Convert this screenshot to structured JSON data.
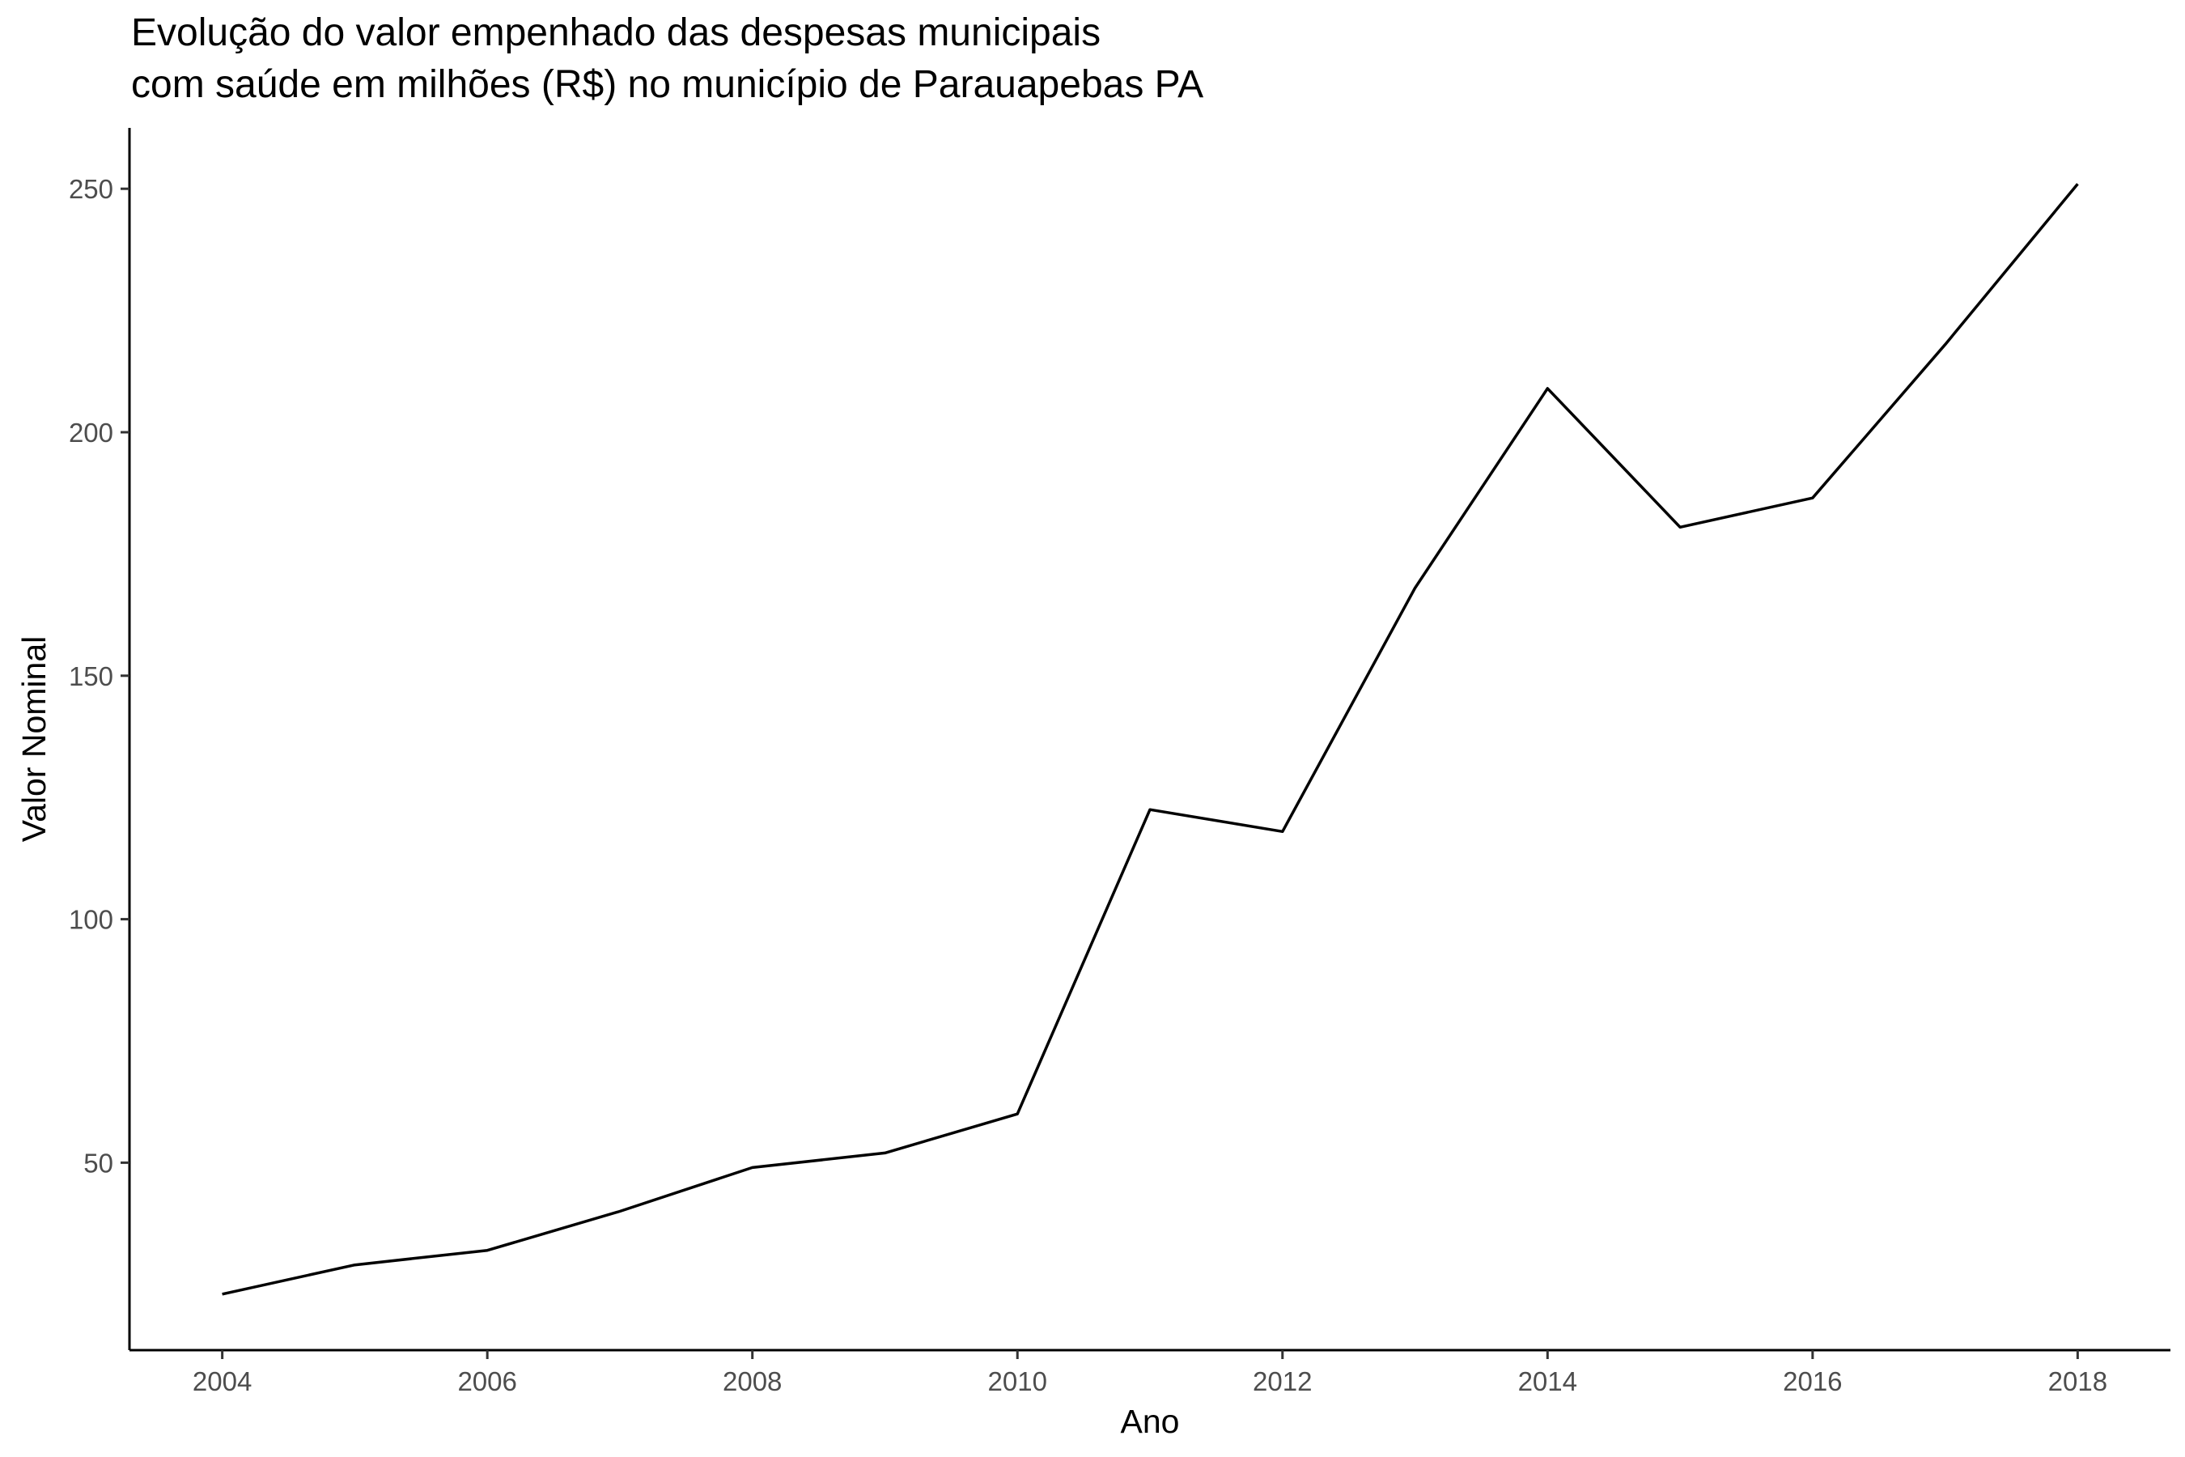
{
  "chart_data": {
    "type": "line",
    "title_lines": [
      "Evolução do valor empenhado das despesas municipais",
      "com saúde em milhões (R$) no município de Parauapebas PA"
    ],
    "xlabel": "Ano",
    "ylabel": "Valor Nominal",
    "x": [
      2004,
      2005,
      2006,
      2007,
      2008,
      2009,
      2010,
      2011,
      2012,
      2013,
      2014,
      2015,
      2016,
      2017,
      2018
    ],
    "values": [
      23,
      29,
      32,
      40,
      49,
      52,
      60,
      122.5,
      118,
      168,
      209,
      180.5,
      186.5,
      218,
      251
    ],
    "xlim": [
      2003.3,
      2018.7
    ],
    "ylim": [
      11.5,
      262.5
    ],
    "xticks": [
      2004,
      2006,
      2008,
      2010,
      2012,
      2014,
      2016,
      2018
    ],
    "yticks": [
      50,
      100,
      150,
      200,
      250
    ],
    "line_color": "#000000",
    "grid": false,
    "legend": "none"
  }
}
